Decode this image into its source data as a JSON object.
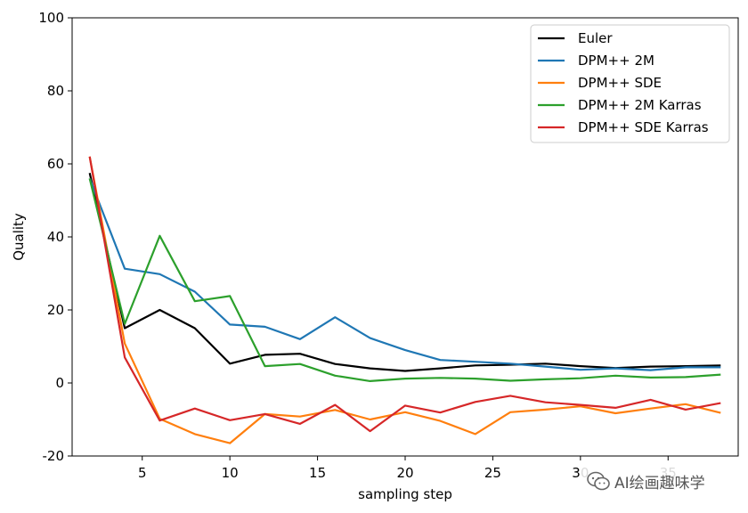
{
  "chart_data": {
    "type": "line",
    "xlabel": "sampling step",
    "ylabel": "Quality",
    "xlim": [
      1,
      39
    ],
    "ylim": [
      -20,
      100
    ],
    "x_ticks": [
      5,
      10,
      15,
      20,
      25,
      30,
      35
    ],
    "y_ticks": [
      -20,
      0,
      20,
      40,
      60,
      80,
      100
    ],
    "grid": false,
    "legend_position": "top-right",
    "x": [
      2,
      4,
      6,
      8,
      10,
      12,
      14,
      16,
      18,
      20,
      22,
      24,
      26,
      28,
      30,
      32,
      34,
      36,
      38
    ],
    "series": [
      {
        "name": "Euler",
        "color": "#000000",
        "values": [
          57.5,
          15,
          20,
          15,
          5.3,
          7.7,
          8,
          5.2,
          4,
          3.3,
          4,
          4.8,
          5,
          5.3,
          4.6,
          4.1,
          4.5,
          4.6,
          4.8
        ]
      },
      {
        "name": "DPM++ 2M",
        "color": "#1f77b4",
        "values": [
          56,
          31.3,
          29.8,
          25,
          16,
          15.4,
          12,
          18,
          12.3,
          9,
          6.3,
          5.8,
          5.3,
          4.5,
          3.6,
          4,
          3.5,
          4.3,
          4.3
        ]
      },
      {
        "name": "DPM++ SDE",
        "color": "#ff7f0e",
        "values": [
          62,
          10.8,
          -9.8,
          -14,
          -16.5,
          -8.5,
          -9.2,
          -7.4,
          -10,
          -8,
          -10.4,
          -14,
          -8,
          -7.3,
          -6.4,
          -8.3,
          -7,
          -5.8,
          -8.2
        ]
      },
      {
        "name": "DPM++ 2M Karras",
        "color": "#2ca02c",
        "values": [
          56,
          16.2,
          40.3,
          22.4,
          23.8,
          4.6,
          5.2,
          2,
          0.5,
          1.2,
          1.4,
          1.2,
          0.6,
          1,
          1.3,
          2,
          1.5,
          1.6,
          2.3
        ]
      },
      {
        "name": "DPM++ SDE Karras",
        "color": "#d62728",
        "values": [
          62,
          7,
          -10.3,
          -7,
          -10.2,
          -8.5,
          -11.2,
          -6,
          -13.2,
          -6.2,
          -8.1,
          -5.2,
          -3.5,
          -5.3,
          -6,
          -6.8,
          -4.6,
          -7.3,
          -5.5
        ]
      }
    ]
  },
  "watermark": {
    "text": "AI绘画趣味学",
    "icon": "wechat-icon"
  }
}
